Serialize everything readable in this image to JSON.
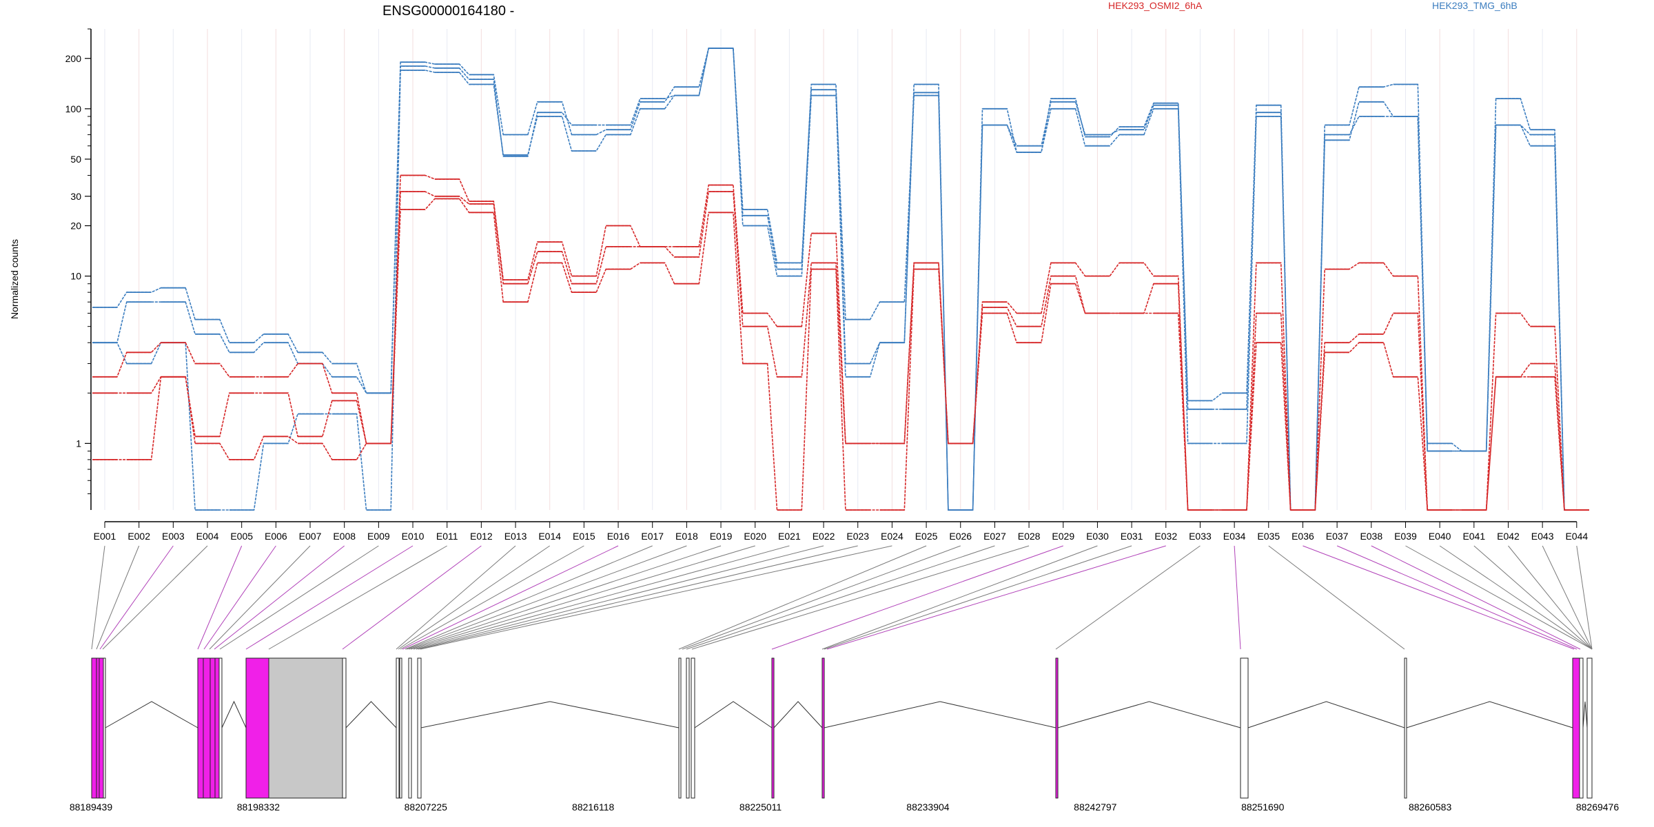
{
  "chart_data": {
    "type": "line",
    "title": "ENSG00000164180 -",
    "ylabel": "Normalized counts",
    "y_scale": "log",
    "ylim": [
      0.4,
      300
    ],
    "y_ticks": [
      1,
      10,
      20,
      30,
      50,
      100,
      200
    ],
    "legend": {
      "position": "top",
      "entries": [
        {
          "label": "HEK293_OSMI2_6hA",
          "color": "#d62728"
        },
        {
          "label": "HEK293_TMG_6hB",
          "color": "#3b7dbf"
        }
      ]
    },
    "categories": [
      "E001",
      "E002",
      "E003",
      "E004",
      "E005",
      "E006",
      "E007",
      "E008",
      "E009",
      "E010",
      "E011",
      "E012",
      "E013",
      "E014",
      "E015",
      "E016",
      "E017",
      "E018",
      "E019",
      "E020",
      "E021",
      "E022",
      "E023",
      "E024",
      "E025",
      "E026",
      "E027",
      "E028",
      "E029",
      "E030",
      "E031",
      "E032",
      "E033",
      "E034",
      "E035",
      "E036",
      "E037",
      "E038",
      "E039",
      "E040",
      "E041",
      "E042",
      "E043",
      "E044"
    ],
    "series": [
      {
        "group": "TMG",
        "color": "#3b7dbf",
        "values": [
          6.5,
          8,
          8.5,
          5.5,
          4,
          4.5,
          3.5,
          3,
          2,
          180,
          175,
          150,
          52,
          95,
          80,
          80,
          115,
          120,
          230,
          25,
          12,
          130,
          5.5,
          7,
          120,
          0.4,
          80,
          60,
          110,
          70,
          75,
          105,
          1.8,
          2,
          95,
          0.4,
          65,
          110,
          90,
          1,
          0.9,
          80,
          70,
          0.4
        ]
      },
      {
        "group": "TMG",
        "color": "#3b7dbf",
        "values": [
          4,
          7,
          7,
          4.5,
          3.5,
          4,
          3,
          2.5,
          2,
          190,
          185,
          160,
          70,
          110,
          70,
          75,
          110,
          135,
          230,
          23,
          11,
          140,
          3,
          4,
          140,
          0.4,
          100,
          55,
          115,
          68,
          78,
          108,
          1.6,
          1.6,
          105,
          0.4,
          80,
          135,
          140,
          0.9,
          0.9,
          115,
          75,
          0.4
        ]
      },
      {
        "group": "TMG",
        "color": "#3b7dbf",
        "values": [
          4,
          3,
          4,
          0.4,
          0.4,
          1,
          1.5,
          1.5,
          0.4,
          170,
          165,
          140,
          53,
          90,
          56,
          70,
          100,
          120,
          230,
          20,
          10,
          120,
          2.5,
          4,
          125,
          0.4,
          80,
          55,
          100,
          60,
          70,
          100,
          1,
          1,
          90,
          0.4,
          70,
          90,
          90,
          0.9,
          0.9,
          80,
          60,
          0.4
        ]
      },
      {
        "group": "OSMI",
        "color": "#d62728",
        "values": [
          2.5,
          3.5,
          4,
          3,
          2.5,
          2.5,
          3,
          2,
          1,
          40,
          38,
          28,
          9.5,
          16,
          10,
          20,
          15,
          15,
          35,
          6,
          5,
          18,
          1,
          1,
          12,
          1,
          7,
          6,
          12,
          10,
          12,
          10,
          0.4,
          0.4,
          12,
          0.4,
          11,
          12,
          10,
          0.4,
          0.4,
          6,
          5,
          0.4
        ]
      },
      {
        "group": "OSMI",
        "color": "#d62728",
        "values": [
          2,
          2,
          2.5,
          1.1,
          2,
          2,
          1.1,
          1.8,
          1,
          32,
          30,
          27,
          9,
          14,
          9,
          15,
          15,
          13,
          32,
          5,
          2.5,
          12,
          1,
          1,
          12,
          1,
          6.5,
          5,
          10,
          6,
          6,
          9,
          0.4,
          0.4,
          6,
          0.4,
          4,
          4.5,
          6,
          0.4,
          0.4,
          2.5,
          3,
          0.4
        ]
      },
      {
        "group": "OSMI",
        "color": "#d62728",
        "values": [
          0.8,
          0.8,
          2.5,
          1,
          0.8,
          1.1,
          1,
          0.8,
          1,
          25,
          29,
          24,
          7,
          12,
          8,
          11,
          12,
          9,
          24,
          3,
          0.4,
          11,
          0.4,
          0.4,
          11,
          1,
          6,
          4,
          9,
          6,
          6,
          6,
          0.4,
          0.4,
          4,
          0.4,
          3.5,
          4,
          2.5,
          0.4,
          0.4,
          2.5,
          2.5,
          0.4
        ]
      }
    ],
    "genomic_axis": {
      "ticks": [
        "88189439",
        "88198332",
        "88207225",
        "88216118",
        "88225011",
        "88233904",
        "88242797",
        "88251690",
        "88260583",
        "88269476"
      ],
      "range": [
        88189439,
        88269476
      ],
      "exon_highlight_color": "#f020e8",
      "intron_retention_color": "#c8c8c8"
    }
  }
}
